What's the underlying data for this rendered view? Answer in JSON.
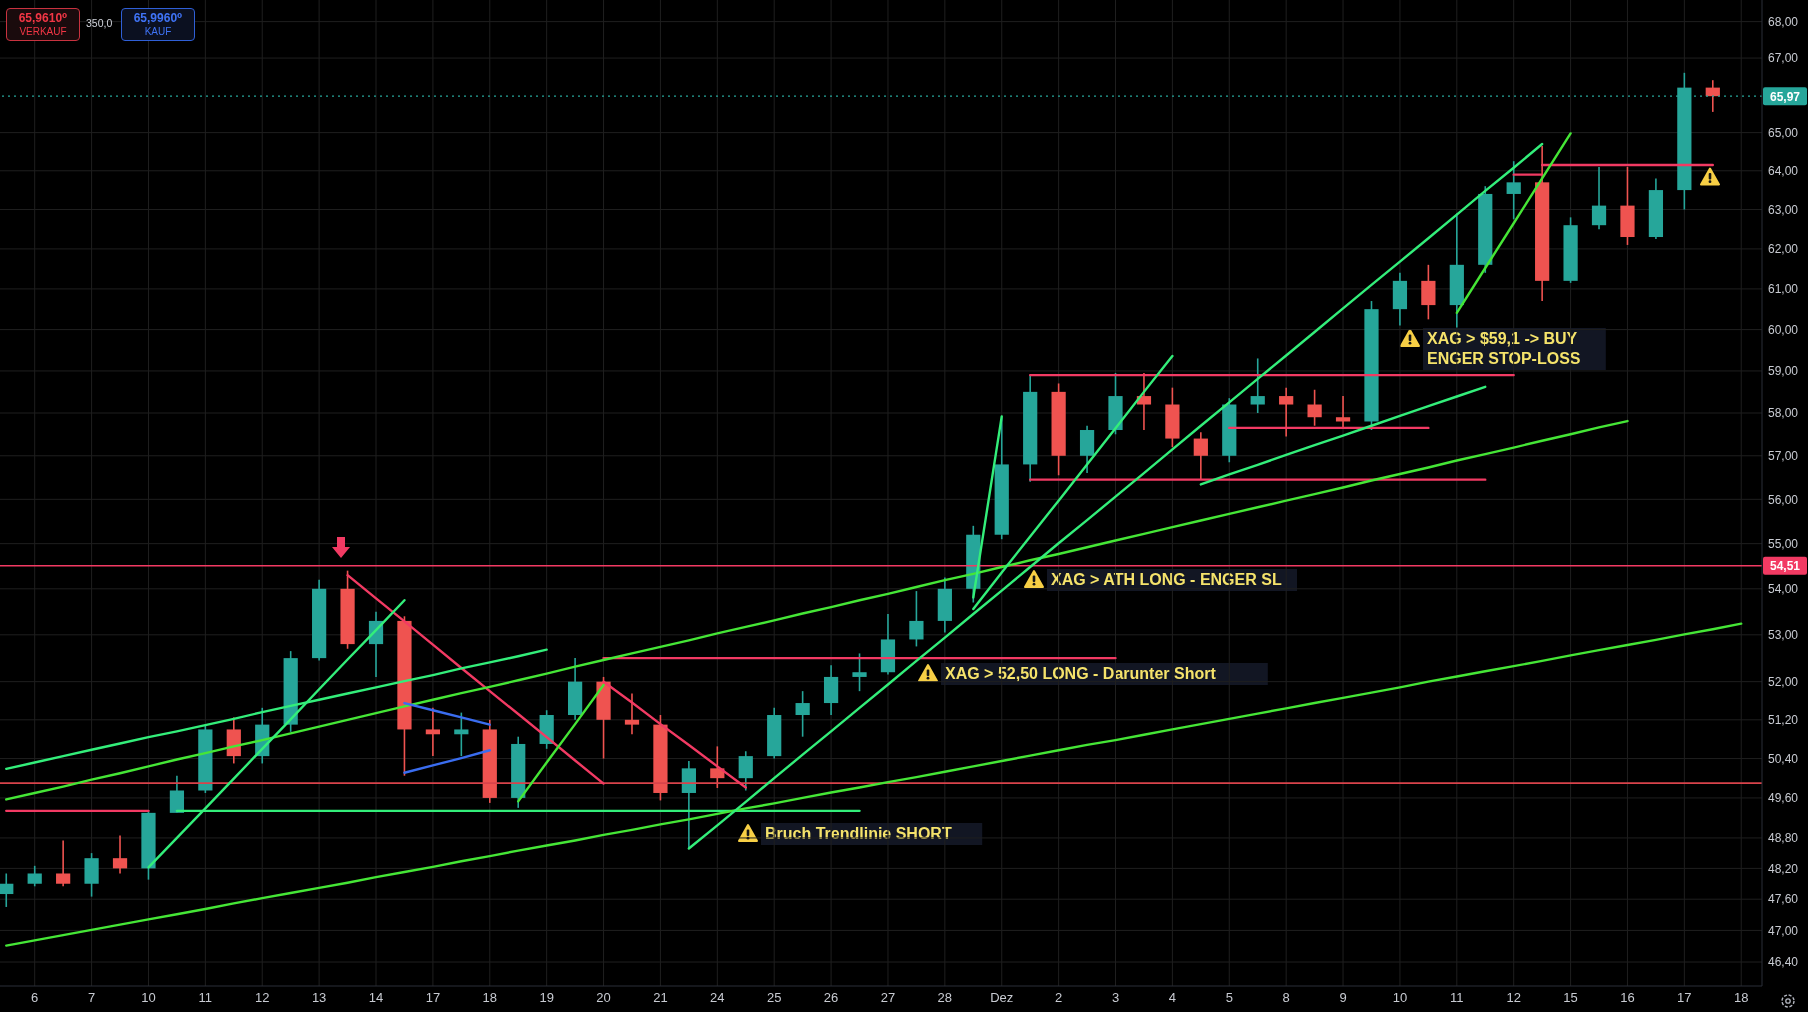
{
  "chart_data": {
    "type": "candlestick",
    "categories": [
      null,
      "6",
      null,
      "7",
      null,
      "10",
      null,
      "11",
      null,
      "12",
      null,
      "13",
      null,
      "14",
      null,
      "17",
      null,
      "18",
      null,
      "19",
      null,
      "20",
      null,
      "21",
      null,
      "24",
      null,
      "25",
      null,
      "26",
      null,
      "27",
      null,
      "28",
      null,
      "Dez",
      null,
      "2",
      null,
      "3",
      null,
      "4",
      null,
      "5",
      null,
      "8",
      null,
      "9",
      null,
      "10",
      null,
      "11",
      null,
      "12",
      null,
      "15",
      null,
      "16",
      null,
      "17",
      null,
      "18"
    ],
    "ohlc": [
      [
        47.7,
        48.1,
        47.45,
        47.9
      ],
      [
        47.9,
        48.25,
        47.85,
        48.1
      ],
      [
        48.1,
        48.75,
        47.85,
        47.9
      ],
      [
        47.9,
        48.5,
        47.65,
        48.4
      ],
      [
        48.4,
        48.85,
        48.1,
        48.2
      ],
      [
        48.2,
        49.35,
        47.98,
        49.3
      ],
      [
        49.3,
        50.05,
        49.3,
        49.75
      ],
      [
        49.75,
        51.1,
        49.7,
        51.0
      ],
      [
        51.0,
        51.25,
        50.3,
        50.45
      ],
      [
        50.45,
        51.45,
        50.3,
        51.1
      ],
      [
        51.1,
        52.65,
        50.95,
        52.5
      ],
      [
        52.5,
        54.2,
        52.45,
        54.0
      ],
      [
        54.0,
        54.4,
        52.7,
        52.8
      ],
      [
        52.8,
        53.5,
        52.1,
        53.3
      ],
      [
        53.3,
        53.4,
        50.05,
        51.0
      ],
      [
        51.0,
        51.45,
        50.45,
        50.9
      ],
      [
        50.9,
        51.35,
        50.45,
        51.0
      ],
      [
        51.0,
        51.2,
        49.5,
        49.6
      ],
      [
        49.6,
        50.85,
        49.4,
        50.7
      ],
      [
        50.7,
        51.4,
        50.6,
        51.3
      ],
      [
        51.3,
        52.5,
        51.2,
        52.0
      ],
      [
        52.0,
        52.1,
        50.4,
        51.2
      ],
      [
        51.2,
        51.75,
        50.9,
        51.1
      ],
      [
        51.1,
        51.3,
        49.55,
        49.7
      ],
      [
        49.7,
        50.35,
        48.6,
        50.2
      ],
      [
        50.2,
        50.65,
        49.8,
        50.0
      ],
      [
        50.0,
        50.55,
        49.75,
        50.45
      ],
      [
        50.45,
        51.45,
        50.4,
        51.3
      ],
      [
        51.3,
        51.8,
        50.85,
        51.55
      ],
      [
        51.55,
        52.35,
        51.3,
        52.1
      ],
      [
        52.1,
        52.6,
        51.8,
        52.2
      ],
      [
        52.2,
        53.45,
        52.15,
        52.9
      ],
      [
        52.9,
        53.95,
        52.75,
        53.3
      ],
      [
        53.3,
        54.25,
        53.05,
        54.0
      ],
      [
        54.0,
        55.4,
        53.7,
        55.2
      ],
      [
        55.2,
        57.9,
        55.1,
        56.8
      ],
      [
        56.8,
        58.9,
        56.4,
        58.5
      ],
      [
        58.5,
        58.7,
        56.55,
        57.0
      ],
      [
        57.0,
        57.7,
        56.6,
        57.6
      ],
      [
        57.6,
        58.95,
        57.5,
        58.4
      ],
      [
        58.4,
        58.95,
        57.6,
        58.2
      ],
      [
        58.2,
        58.6,
        57.2,
        57.4
      ],
      [
        57.4,
        57.55,
        56.45,
        57.0
      ],
      [
        57.0,
        58.35,
        56.85,
        58.2
      ],
      [
        58.2,
        59.3,
        58.0,
        58.4
      ],
      [
        58.4,
        58.6,
        57.45,
        58.2
      ],
      [
        58.2,
        58.55,
        57.7,
        57.9
      ],
      [
        57.9,
        58.4,
        57.65,
        57.8
      ],
      [
        57.8,
        60.7,
        57.6,
        60.5
      ],
      [
        60.5,
        61.4,
        60.1,
        61.2
      ],
      [
        61.2,
        61.6,
        60.25,
        60.6
      ],
      [
        60.6,
        62.9,
        60.05,
        61.6
      ],
      [
        61.6,
        63.6,
        61.4,
        63.4
      ],
      [
        63.4,
        64.25,
        62.75,
        63.7
      ],
      [
        63.7,
        64.65,
        60.7,
        61.2
      ],
      [
        61.2,
        62.8,
        61.15,
        62.6
      ],
      [
        62.6,
        64.1,
        62.5,
        63.1
      ],
      [
        63.1,
        64.1,
        62.1,
        62.3
      ],
      [
        62.3,
        63.8,
        62.25,
        63.5
      ],
      [
        63.5,
        66.6,
        63.0,
        66.2
      ],
      [
        66.2,
        66.4,
        65.55,
        65.97
      ],
      null
    ],
    "colors": [
      "#26a69a",
      "#26a69a",
      "#ef5350",
      "#26a69a",
      "#ef5350",
      "#26a69a",
      "#26a69a",
      "#26a69a",
      "#ef5350",
      "#26a69a",
      "#26a69a",
      "#26a69a",
      "#ef5350",
      "#26a69a",
      "#ef5350",
      "#ef5350",
      "#26a69a",
      "#ef5350",
      "#26a69a",
      "#26a69a",
      "#26a69a",
      "#ef5350",
      "#ef5350",
      "#ef5350",
      "#26a69a",
      "#ef5350",
      "#26a69a",
      "#26a69a",
      "#26a69a",
      "#26a69a",
      "#26a69a",
      "#26a69a",
      "#26a69a",
      "#26a69a",
      "#26a69a",
      "#26a69a",
      "#26a69a",
      "#ef5350",
      "#26a69a",
      "#26a69a",
      "#ef5350",
      "#ef5350",
      "#ef5350",
      "#26a69a",
      "#26a69a",
      "#ef5350",
      "#ef5350",
      "#ef5350",
      "#26a69a",
      "#26a69a",
      "#ef5350",
      "#26a69a",
      "#26a69a",
      "#26a69a",
      "#ef5350",
      "#26a69a",
      "#26a69a",
      "#ef5350",
      "#26a69a",
      "#26a69a",
      "#ef5350",
      null
    ],
    "series": [
      {
        "type": "line",
        "color": "#f23a63",
        "values": [
          49.34,
          49.34,
          49.34,
          49.34,
          49.34,
          49.34,
          null,
          null,
          null,
          null,
          null,
          null,
          null,
          null,
          null,
          null,
          null,
          null,
          null,
          null,
          null,
          null,
          null,
          null,
          null,
          null,
          null,
          null,
          null,
          null,
          null,
          null,
          null,
          null,
          null,
          null,
          null,
          null,
          null,
          null,
          null,
          null,
          null,
          null,
          null,
          null,
          null,
          null,
          null,
          null,
          null,
          null,
          null,
          null,
          null,
          null,
          null,
          null,
          null,
          null,
          null,
          null
        ]
      },
      {
        "type": "line",
        "color": "#33ee7a",
        "values": [
          null,
          null,
          null,
          null,
          null,
          null,
          49.34,
          49.34,
          49.34,
          49.34,
          49.34,
          49.34,
          49.34,
          49.34,
          49.34,
          49.34,
          49.34,
          49.34,
          49.34,
          49.34,
          49.34,
          49.34,
          49.34,
          49.34,
          49.34,
          49.34,
          49.34,
          49.34,
          49.34,
          49.34,
          49.34,
          null,
          null,
          null,
          null,
          null,
          null,
          null,
          null,
          null,
          null,
          null,
          null,
          null,
          null,
          null,
          null,
          null,
          null,
          null,
          null,
          null,
          null,
          null,
          null,
          null,
          null,
          null,
          null,
          null,
          null,
          null
        ]
      },
      {
        "type": "line",
        "color": "#f23a63",
        "values": [
          null,
          null,
          null,
          null,
          null,
          null,
          null,
          null,
          null,
          null,
          null,
          null,
          null,
          null,
          null,
          null,
          null,
          null,
          null,
          null,
          null,
          52.5,
          52.5,
          52.5,
          52.5,
          52.5,
          52.5,
          52.5,
          52.5,
          52.5,
          52.5,
          52.5,
          52.5,
          52.5,
          52.5,
          52.5,
          52.5,
          52.5,
          52.5,
          52.5,
          null,
          null,
          null,
          null,
          null,
          null,
          null,
          null,
          null,
          null,
          null,
          null,
          null,
          null,
          null,
          null,
          null,
          null,
          null,
          null,
          null,
          null
        ]
      },
      {
        "type": "line",
        "color": "#f23a63",
        "values": [
          null,
          null,
          null,
          null,
          null,
          null,
          null,
          null,
          null,
          null,
          null,
          null,
          null,
          null,
          null,
          null,
          null,
          null,
          null,
          null,
          null,
          null,
          null,
          null,
          null,
          null,
          null,
          null,
          null,
          null,
          null,
          null,
          null,
          null,
          null,
          null,
          58.9,
          58.9,
          58.9,
          58.9,
          58.9,
          58.9,
          58.9,
          58.9,
          58.9,
          58.9,
          58.9,
          58.9,
          58.9,
          58.9,
          58.9,
          58.9,
          58.9,
          58.9,
          null,
          null,
          null,
          null,
          null,
          null,
          null,
          null
        ]
      },
      {
        "type": "line",
        "color": "#f23a63",
        "values": [
          null,
          null,
          null,
          null,
          null,
          null,
          null,
          null,
          null,
          null,
          null,
          null,
          null,
          null,
          null,
          null,
          null,
          null,
          null,
          null,
          null,
          null,
          null,
          null,
          null,
          null,
          null,
          null,
          null,
          null,
          null,
          null,
          null,
          null,
          null,
          null,
          56.45,
          56.45,
          56.45,
          56.45,
          56.45,
          56.45,
          56.45,
          56.45,
          56.45,
          56.45,
          56.45,
          56.45,
          56.45,
          56.45,
          56.45,
          56.45,
          56.45,
          null,
          null,
          null,
          null,
          null,
          null,
          null,
          null,
          null
        ]
      },
      {
        "type": "line",
        "color": "#f23a63",
        "values": [
          null,
          null,
          null,
          null,
          null,
          null,
          null,
          null,
          null,
          null,
          null,
          null,
          null,
          null,
          null,
          null,
          null,
          null,
          null,
          null,
          null,
          null,
          null,
          null,
          null,
          null,
          null,
          null,
          null,
          null,
          null,
          null,
          null,
          null,
          null,
          null,
          null,
          null,
          null,
          null,
          null,
          null,
          null,
          57.65,
          57.65,
          57.65,
          57.65,
          57.65,
          57.65,
          57.65,
          57.65,
          null,
          null,
          null,
          null,
          null,
          null,
          null,
          null,
          null,
          null,
          null
        ]
      },
      {
        "type": "line",
        "color": "#f23a63",
        "values": [
          null,
          null,
          null,
          null,
          null,
          null,
          null,
          null,
          null,
          null,
          null,
          null,
          null,
          null,
          null,
          null,
          null,
          null,
          null,
          null,
          null,
          null,
          null,
          null,
          null,
          null,
          null,
          null,
          null,
          null,
          null,
          null,
          null,
          null,
          null,
          null,
          null,
          null,
          null,
          null,
          null,
          null,
          null,
          null,
          null,
          null,
          null,
          null,
          null,
          null,
          null,
          null,
          null,
          63.9,
          63.9,
          null,
          null,
          null,
          null,
          null,
          null,
          null
        ]
      },
      {
        "type": "line",
        "color": "#f23a63",
        "values": [
          null,
          null,
          null,
          null,
          null,
          null,
          null,
          null,
          null,
          null,
          null,
          null,
          null,
          null,
          null,
          null,
          null,
          null,
          null,
          null,
          null,
          null,
          null,
          null,
          null,
          null,
          null,
          null,
          null,
          null,
          null,
          null,
          null,
          null,
          null,
          null,
          null,
          null,
          null,
          null,
          null,
          null,
          null,
          null,
          null,
          null,
          null,
          null,
          null,
          null,
          null,
          null,
          null,
          null,
          64.15,
          64.15,
          64.15,
          64.15,
          64.15,
          64.15,
          64.15,
          null
        ]
      },
      {
        "type": "line",
        "color": "#f23a63",
        "values": [
          null,
          null,
          null,
          null,
          null,
          null,
          null,
          null,
          null,
          null,
          null,
          null,
          54.3,
          53.79,
          53.29,
          52.79,
          52.29,
          51.8,
          51.32,
          50.84,
          50.36,
          49.89,
          null,
          null,
          null,
          null,
          null,
          null,
          null,
          null,
          null,
          null,
          null,
          null,
          null,
          null,
          null,
          null,
          null,
          null,
          null,
          null,
          null,
          null,
          null,
          null,
          null,
          null,
          null,
          null,
          null,
          null,
          null,
          null,
          null,
          null,
          null,
          null,
          null,
          null,
          null,
          null
        ]
      },
      {
        "type": "line",
        "color": "#f23a63",
        "values": [
          null,
          null,
          null,
          null,
          null,
          null,
          null,
          null,
          null,
          null,
          null,
          null,
          null,
          null,
          null,
          null,
          null,
          null,
          null,
          null,
          null,
          52.0,
          51.56,
          51.11,
          50.68,
          50.24,
          49.81,
          null,
          null,
          null,
          null,
          null,
          null,
          null,
          null,
          null,
          null,
          null,
          null,
          null,
          null,
          null,
          null,
          null,
          null,
          null,
          null,
          null,
          null,
          null,
          null,
          null,
          null,
          null,
          null,
          null,
          null,
          null,
          null,
          null,
          null,
          null
        ]
      },
      {
        "type": "line",
        "color": "#45e636",
        "values": [
          46.71,
          46.81,
          46.91,
          47.01,
          47.11,
          47.21,
          47.31,
          47.41,
          47.52,
          47.62,
          47.72,
          47.82,
          47.92,
          48.03,
          48.13,
          48.23,
          48.34,
          48.44,
          48.55,
          48.65,
          48.75,
          48.86,
          48.96,
          49.07,
          49.17,
          49.28,
          49.39,
          49.49,
          49.6,
          49.71,
          49.81,
          49.92,
          50.02,
          50.13,
          50.24,
          50.35,
          50.46,
          50.57,
          50.68,
          50.78,
          50.89,
          51.0,
          51.11,
          51.22,
          51.33,
          51.44,
          51.55,
          51.66,
          51.77,
          51.88,
          52.0,
          52.11,
          52.22,
          52.33,
          52.44,
          52.56,
          52.67,
          52.78,
          52.89,
          53.01,
          53.12,
          53.24
        ]
      },
      {
        "type": "line",
        "color": "#45e636",
        "values": [
          49.57,
          49.7,
          49.83,
          49.97,
          50.1,
          50.24,
          50.38,
          50.51,
          50.65,
          50.78,
          50.92,
          51.06,
          51.2,
          51.34,
          51.48,
          51.62,
          51.76,
          51.89,
          52.03,
          52.17,
          52.32,
          52.46,
          52.6,
          52.74,
          52.88,
          53.03,
          53.17,
          53.31,
          53.46,
          53.6,
          53.75,
          53.89,
          54.04,
          54.19,
          54.33,
          54.48,
          54.63,
          54.77,
          54.92,
          55.07,
          55.22,
          55.37,
          55.52,
          55.67,
          55.82,
          55.97,
          56.12,
          56.27,
          56.43,
          56.58,
          56.73,
          56.89,
          57.04,
          57.19,
          57.35,
          57.5,
          57.66,
          57.81,
          null,
          null,
          null,
          null
        ]
      },
      {
        "type": "line",
        "color": "#33ee7a",
        "values": [
          50.19,
          50.32,
          50.45,
          50.58,
          50.71,
          50.84,
          50.96,
          51.09,
          51.22,
          51.36,
          51.49,
          51.62,
          51.75,
          51.88,
          52.01,
          52.14,
          52.28,
          52.41,
          52.54,
          52.68,
          null,
          null,
          null,
          null,
          null,
          null,
          null,
          null,
          null,
          null,
          null,
          null,
          null,
          null,
          null,
          null,
          null,
          null,
          null,
          null,
          null,
          null,
          null,
          null,
          null,
          null,
          null,
          null,
          null,
          null,
          null,
          null,
          null,
          null,
          null,
          null,
          null,
          null,
          null,
          null,
          null,
          null
        ]
      },
      {
        "type": "line",
        "color": "#33ee7a",
        "values": [
          null,
          null,
          null,
          null,
          null,
          48.22,
          48.8,
          49.39,
          49.99,
          50.6,
          51.21,
          51.84,
          52.47,
          53.1,
          53.75,
          null,
          null,
          null,
          null,
          null,
          null,
          null,
          null,
          null,
          null,
          null,
          null,
          null,
          null,
          null,
          null,
          null,
          null,
          null,
          null,
          null,
          null,
          null,
          null,
          null,
          null,
          null,
          null,
          null,
          null,
          null,
          null,
          null,
          null,
          null,
          null,
          null,
          null,
          null,
          null,
          null,
          null,
          null,
          null,
          null,
          null,
          null
        ]
      },
      {
        "type": "line",
        "color": "#45e636",
        "values": [
          null,
          null,
          null,
          null,
          null,
          null,
          null,
          null,
          null,
          null,
          null,
          null,
          null,
          null,
          null,
          null,
          null,
          null,
          49.53,
          50.32,
          51.11,
          51.93,
          null,
          null,
          null,
          null,
          null,
          null,
          null,
          null,
          null,
          null,
          null,
          null,
          null,
          null,
          null,
          null,
          null,
          null,
          null,
          null,
          null,
          null,
          null,
          null,
          null,
          null,
          null,
          null,
          null,
          null,
          null,
          null,
          null,
          null,
          null,
          null,
          null,
          null,
          null,
          null
        ]
      },
      {
        "type": "line",
        "color": "#33ee7a",
        "values": [
          null,
          null,
          null,
          null,
          null,
          null,
          null,
          null,
          null,
          null,
          null,
          null,
          null,
          null,
          null,
          null,
          null,
          null,
          null,
          null,
          null,
          null,
          null,
          null,
          48.59,
          49.05,
          49.52,
          50.0,
          50.48,
          50.96,
          51.45,
          51.94,
          52.44,
          52.94,
          53.45,
          53.96,
          54.48,
          55.01,
          55.53,
          56.06,
          56.6,
          57.15,
          57.7,
          58.25,
          58.81,
          59.37,
          59.94,
          60.52,
          61.1,
          61.68,
          62.27,
          62.87,
          63.48,
          64.08,
          64.7,
          null,
          null,
          null,
          null,
          null,
          null,
          null
        ]
      },
      {
        "type": "line",
        "color": "#33ee7a",
        "values": [
          null,
          null,
          null,
          null,
          null,
          null,
          null,
          null,
          null,
          null,
          null,
          null,
          null,
          null,
          null,
          null,
          null,
          null,
          null,
          null,
          null,
          null,
          null,
          null,
          null,
          null,
          null,
          null,
          null,
          null,
          null,
          null,
          null,
          null,
          53.56,
          54.36,
          55.16,
          55.97,
          56.8,
          57.64,
          58.5,
          59.36,
          null,
          null,
          null,
          null,
          null,
          null,
          null,
          null,
          null,
          null,
          null,
          null,
          null,
          null,
          null,
          null,
          null,
          null,
          null,
          null
        ]
      },
      {
        "type": "line",
        "color": "#33ee7a",
        "values": [
          null,
          null,
          null,
          null,
          null,
          null,
          null,
          null,
          null,
          null,
          null,
          null,
          null,
          null,
          null,
          null,
          null,
          null,
          null,
          null,
          null,
          null,
          null,
          null,
          null,
          null,
          null,
          null,
          null,
          null,
          null,
          null,
          null,
          null,
          53.81,
          57.92,
          null,
          null,
          null,
          null,
          null,
          null,
          null,
          null,
          null,
          null,
          null,
          null,
          null,
          null,
          null,
          null,
          null,
          null,
          null,
          null,
          null,
          null,
          null,
          null,
          null,
          null
        ]
      },
      {
        "type": "line",
        "color": "#33ee7a",
        "values": [
          null,
          null,
          null,
          null,
          null,
          null,
          null,
          null,
          null,
          null,
          null,
          null,
          null,
          null,
          null,
          null,
          null,
          null,
          null,
          null,
          null,
          null,
          null,
          null,
          null,
          null,
          null,
          null,
          null,
          null,
          null,
          null,
          null,
          null,
          null,
          null,
          null,
          null,
          null,
          null,
          null,
          null,
          56.34,
          56.57,
          56.79,
          57.02,
          57.25,
          57.47,
          57.7,
          57.93,
          58.16,
          58.39,
          58.62,
          null,
          null,
          null,
          null,
          null,
          null,
          null,
          null,
          null
        ]
      },
      {
        "type": "line",
        "color": "#45e636",
        "values": [
          null,
          null,
          null,
          null,
          null,
          null,
          null,
          null,
          null,
          null,
          null,
          null,
          null,
          null,
          null,
          null,
          null,
          null,
          null,
          null,
          null,
          null,
          null,
          null,
          null,
          null,
          null,
          null,
          null,
          null,
          null,
          null,
          null,
          null,
          null,
          null,
          null,
          null,
          null,
          null,
          null,
          null,
          null,
          null,
          null,
          null,
          null,
          null,
          null,
          null,
          null,
          60.41,
          61.52,
          62.65,
          63.8,
          64.98,
          null,
          null,
          null,
          null,
          null,
          null
        ]
      },
      {
        "type": "line",
        "color": "#3a6df0",
        "values": [
          null,
          null,
          null,
          null,
          null,
          null,
          null,
          null,
          null,
          null,
          null,
          null,
          null,
          null,
          51.55,
          51.4,
          51.25,
          51.1,
          null,
          null,
          null,
          null,
          null,
          null,
          null,
          null,
          null,
          null,
          null,
          null,
          null,
          null,
          null,
          null,
          null,
          null,
          null,
          null,
          null,
          null,
          null,
          null,
          null,
          null,
          null,
          null,
          null,
          null,
          null,
          null,
          null,
          null,
          null,
          null,
          null,
          null,
          null,
          null,
          null,
          null,
          null,
          null
        ]
      },
      {
        "type": "line",
        "color": "#3a6df0",
        "values": [
          null,
          null,
          null,
          null,
          null,
          null,
          null,
          null,
          null,
          null,
          null,
          null,
          null,
          null,
          50.11,
          50.26,
          50.41,
          50.57,
          null,
          null,
          null,
          null,
          null,
          null,
          null,
          null,
          null,
          null,
          null,
          null,
          null,
          null,
          null,
          null,
          null,
          null,
          null,
          null,
          null,
          null,
          null,
          null,
          null,
          null,
          null,
          null,
          null,
          null,
          null,
          null,
          null,
          null,
          null,
          null,
          null,
          null,
          null,
          null,
          null,
          null,
          null,
          null
        ]
      }
    ],
    "ylim": [
      45.95,
      68.6
    ],
    "yticks": [
      {
        "value": 68,
        "label": "68,00"
      },
      {
        "value": 67,
        "label": "67,00"
      },
      {
        "value": 65,
        "label": "65,00"
      },
      {
        "value": 64,
        "label": "64,00"
      },
      {
        "value": 63,
        "label": "63,00"
      },
      {
        "value": 62,
        "label": "62,00"
      },
      {
        "value": 61,
        "label": "61,00"
      },
      {
        "value": 60,
        "label": "60,00"
      },
      {
        "value": 59,
        "label": "59,00"
      },
      {
        "value": 58,
        "label": "58,00"
      },
      {
        "value": 57,
        "label": "57,00"
      },
      {
        "value": 56,
        "label": "56,00"
      },
      {
        "value": 55,
        "label": "55,00"
      },
      {
        "value": 54,
        "label": "54,00"
      },
      {
        "value": 53,
        "label": "53,00"
      },
      {
        "value": 52,
        "label": "52,00"
      },
      {
        "value": 51.2,
        "label": "51,20"
      },
      {
        "value": 50.4,
        "label": "50,40"
      },
      {
        "value": 49.6,
        "label": "49,60"
      },
      {
        "value": 48.8,
        "label": "48,80"
      },
      {
        "value": 48.2,
        "label": "48,20"
      },
      {
        "value": 47.6,
        "label": "47,60"
      },
      {
        "value": 47,
        "label": "47,00"
      },
      {
        "value": 46.4,
        "label": "46,40"
      }
    ],
    "log": true,
    "grid": true,
    "marker": "none",
    "line_style": "solid",
    "ref_lines": [
      {
        "axis": "y",
        "value": 54.51,
        "label": "54,51",
        "color": "#f23a63"
      },
      {
        "axis": "y",
        "value": 49.9,
        "color": "#d9434b"
      },
      {
        "axis": "y",
        "value": 65.97,
        "label": "65,97",
        "color": "#26a69a",
        "line_style": "dotted"
      }
    ],
    "annotations": [
      "65,9610⁰",
      "VERKAUF",
      "350,0",
      "65,9960⁰",
      "KAUF",
      "XAG > ATH LONG - ENGER SL",
      "XAG > 52,50 LONG - Darunter Short",
      "Bruch Trendlinie SHORT",
      "XAG > $59,1 -> BUY\nENGER STOP-LOSS"
    ]
  }
}
